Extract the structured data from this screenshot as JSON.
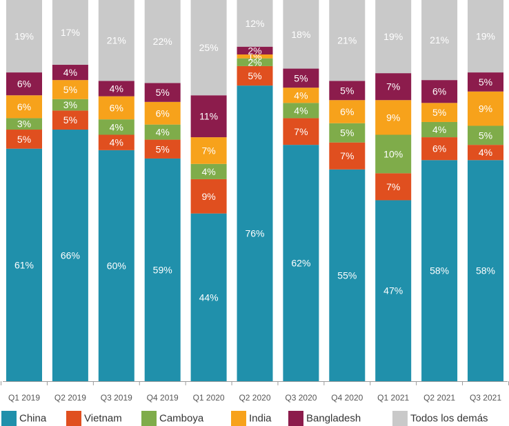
{
  "chart_data": {
    "type": "bar",
    "stacked": true,
    "percent": true,
    "categories": [
      "Q1 2019",
      "Q2 2019",
      "Q3 2019",
      "Q4 2019",
      "Q1 2020",
      "Q2 2020",
      "Q3 2020",
      "Q4 2020",
      "Q1 2021",
      "Q2 2021",
      "Q3 2021"
    ],
    "series": [
      {
        "name": "China",
        "color": "#2090ab",
        "values": [
          61,
          66,
          60,
          59,
          44,
          76,
          62,
          55,
          47,
          58,
          58
        ]
      },
      {
        "name": "Vietnam",
        "color": "#e04f1f",
        "values": [
          5,
          5,
          4,
          5,
          9,
          5,
          7,
          7,
          7,
          6,
          4
        ]
      },
      {
        "name": "Camboya",
        "color": "#7fac4a",
        "values": [
          3,
          3,
          4,
          4,
          4,
          2,
          4,
          5,
          10,
          4,
          5
        ]
      },
      {
        "name": "India",
        "color": "#f7a21b",
        "values": [
          6,
          5,
          6,
          6,
          7,
          1,
          4,
          6,
          9,
          5,
          9
        ]
      },
      {
        "name": "Bangladesh",
        "color": "#8c1c4c",
        "values": [
          6,
          4,
          4,
          5,
          11,
          2,
          5,
          5,
          7,
          6,
          5
        ]
      },
      {
        "name": "Todos los demás",
        "color": "#c9c9c9",
        "values": [
          19,
          17,
          21,
          22,
          25,
          12,
          18,
          21,
          19,
          21,
          19
        ]
      }
    ],
    "ylim": [
      0,
      100
    ],
    "legend_position": "bottom",
    "label_suffix": "%",
    "title": "",
    "xlabel": "",
    "ylabel": ""
  }
}
